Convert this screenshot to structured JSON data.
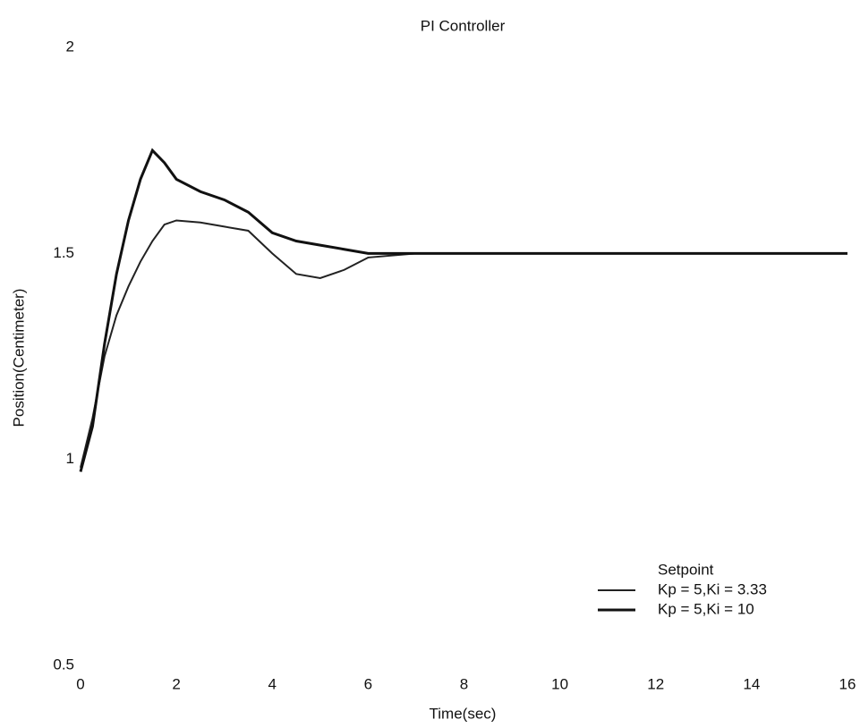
{
  "chart_data": {
    "type": "line",
    "title": "PI Controller",
    "x_label": "Time(sec)",
    "y_label": "Position(Centimeter)",
    "x": [
      0,
      0.25,
      0.5,
      0.75,
      1,
      1.25,
      1.5,
      1.75,
      2,
      2.5,
      3,
      3.5,
      4,
      4.5,
      5,
      5.5,
      6,
      7,
      8,
      10,
      12,
      14,
      16
    ],
    "series": [
      {
        "name": "Setpoint",
        "color": "#ffffff",
        "values": [
          1.5,
          1.5,
          1.5,
          1.5,
          1.5,
          1.5,
          1.5,
          1.5,
          1.5,
          1.5,
          1.5,
          1.5,
          1.5,
          1.5,
          1.5,
          1.5,
          1.5,
          1.5,
          1.5,
          1.5,
          1.5,
          1.5,
          1.5
        ]
      },
      {
        "name": "Kp = 5,Ki = 3.33",
        "color": "#222222",
        "values": [
          0.98,
          1.1,
          1.25,
          1.35,
          1.42,
          1.48,
          1.53,
          1.57,
          1.58,
          1.575,
          1.565,
          1.555,
          1.5,
          1.45,
          1.44,
          1.46,
          1.49,
          1.5,
          1.5,
          1.5,
          1.5,
          1.5,
          1.5
        ]
      },
      {
        "name": "Kp = 5,Ki = 10",
        "color": "#111111",
        "values": [
          0.97,
          1.08,
          1.28,
          1.45,
          1.58,
          1.68,
          1.75,
          1.72,
          1.68,
          1.65,
          1.63,
          1.6,
          1.55,
          1.53,
          1.52,
          1.51,
          1.5,
          1.5,
          1.5,
          1.5,
          1.5,
          1.5,
          1.5
        ]
      }
    ],
    "xlim": [
      0,
      16
    ],
    "xticks": [
      0,
      2,
      4,
      6,
      8,
      10,
      12,
      14,
      16
    ],
    "ylim": [
      0.5,
      2
    ],
    "yticks": [
      0.5,
      1,
      1.5,
      2
    ],
    "legend": "lower-right"
  }
}
